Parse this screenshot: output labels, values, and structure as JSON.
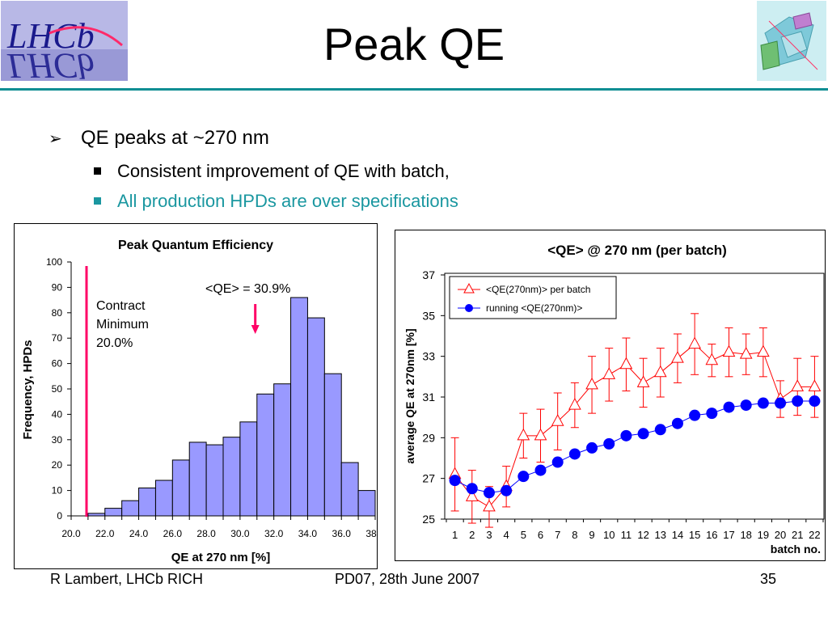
{
  "slide": {
    "title": "Peak QE",
    "bullet_main": "QE peaks at ~270 nm",
    "sub_bullets": [
      "Consistent improvement of QE with batch,",
      "All production HPDs are over specifications"
    ],
    "logo_text": "LHCb",
    "footer_left": "R Lambert, LHCb RICH",
    "footer_center": "PD07, 28th June 2007",
    "footer_right": "35",
    "colors": {
      "accent_rule": "#0f8e93",
      "teal_text": "#1a97a0",
      "bar_fill": "#9999ff",
      "line_red": "#ff0000",
      "point_blue": "#0000ff",
      "marker_pink": "#ff0066"
    }
  },
  "chart_data": [
    {
      "type": "bar",
      "title": "Peak Quantum Efficiency",
      "xlabel": "QE at 270 nm [%]",
      "ylabel": "Frequency, HPDs",
      "bin_start": 20.0,
      "bin_width": 1.0,
      "values": [
        0,
        1,
        3,
        6,
        11,
        14,
        22,
        29,
        28,
        31,
        37,
        48,
        52,
        86,
        78,
        56,
        21,
        10
      ],
      "xticks": [
        "20.0",
        "22.0",
        "24.0",
        "26.0",
        "28.0",
        "30.0",
        "32.0",
        "34.0",
        "36.0",
        "38.0"
      ],
      "xlim": [
        20,
        38
      ],
      "ylim": [
        0,
        100
      ],
      "yticks": [
        0,
        10,
        20,
        30,
        40,
        50,
        60,
        70,
        80,
        90,
        100
      ],
      "annotations": {
        "minimum_label": [
          "Contract",
          "Minimum",
          "20.0%"
        ],
        "minimum_value": 20.0,
        "mean_label": "<QE> = 30.9%",
        "mean_value": 30.9
      }
    },
    {
      "type": "line",
      "title": "<QE> @ 270 nm (per batch)",
      "xlabel": "batch no.",
      "ylabel": "average QE at 270nm [%]",
      "x": [
        1,
        2,
        3,
        4,
        5,
        6,
        7,
        8,
        9,
        10,
        11,
        12,
        13,
        14,
        15,
        16,
        17,
        18,
        19,
        20,
        21,
        22
      ],
      "ylim": [
        25,
        37
      ],
      "yticks": [
        25,
        27,
        29,
        31,
        33,
        35,
        37
      ],
      "series": [
        {
          "name": "<QE(270nm)> per batch",
          "values": [
            27.2,
            26.1,
            25.6,
            26.6,
            29.1,
            29.1,
            29.8,
            30.6,
            31.6,
            32.1,
            32.6,
            31.7,
            32.2,
            32.9,
            33.6,
            32.8,
            33.2,
            33.1,
            33.2,
            30.9,
            31.5,
            31.5
          ],
          "errors": [
            1.8,
            1.3,
            1.0,
            1.0,
            1.1,
            1.3,
            1.4,
            1.1,
            1.4,
            1.3,
            1.3,
            1.2,
            1.2,
            1.2,
            1.5,
            0.8,
            1.2,
            1.0,
            1.2,
            0.9,
            1.4,
            1.5
          ]
        },
        {
          "name": "running <QE(270nm)>",
          "values": [
            26.9,
            26.5,
            26.3,
            26.4,
            27.1,
            27.4,
            27.8,
            28.2,
            28.5,
            28.7,
            29.1,
            29.2,
            29.4,
            29.7,
            30.1,
            30.2,
            30.5,
            30.6,
            30.7,
            30.7,
            30.8,
            30.8
          ]
        }
      ],
      "legend": "top-left"
    }
  ]
}
